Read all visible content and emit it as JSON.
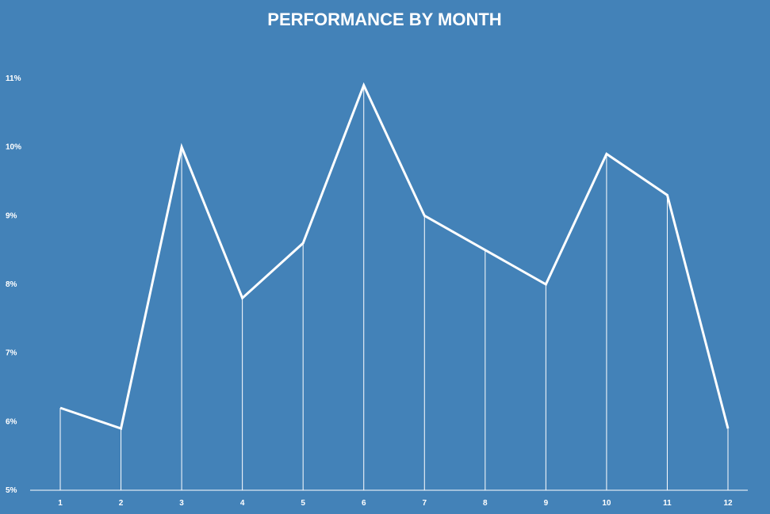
{
  "chart_data": {
    "type": "line",
    "title": "PERFORMANCE BY MONTH",
    "xlabel": "",
    "ylabel": "",
    "categories": [
      "1",
      "2",
      "3",
      "4",
      "5",
      "6",
      "7",
      "8",
      "9",
      "10",
      "11",
      "12"
    ],
    "values": [
      6.2,
      5.9,
      10.0,
      7.8,
      8.6,
      10.9,
      9.0,
      8.5,
      8.0,
      9.9,
      9.3,
      5.9
    ],
    "ylim": [
      5,
      11
    ],
    "y_ticks": [
      5,
      6,
      7,
      8,
      9,
      10,
      11
    ],
    "y_tick_labels": [
      "5%",
      "6%",
      "7%",
      "8%",
      "9%",
      "10%",
      "11%"
    ],
    "grid": false,
    "drop_lines": true,
    "colors": {
      "background": "#4382b8",
      "line": "#ffffff",
      "text": "#ffffff"
    }
  }
}
